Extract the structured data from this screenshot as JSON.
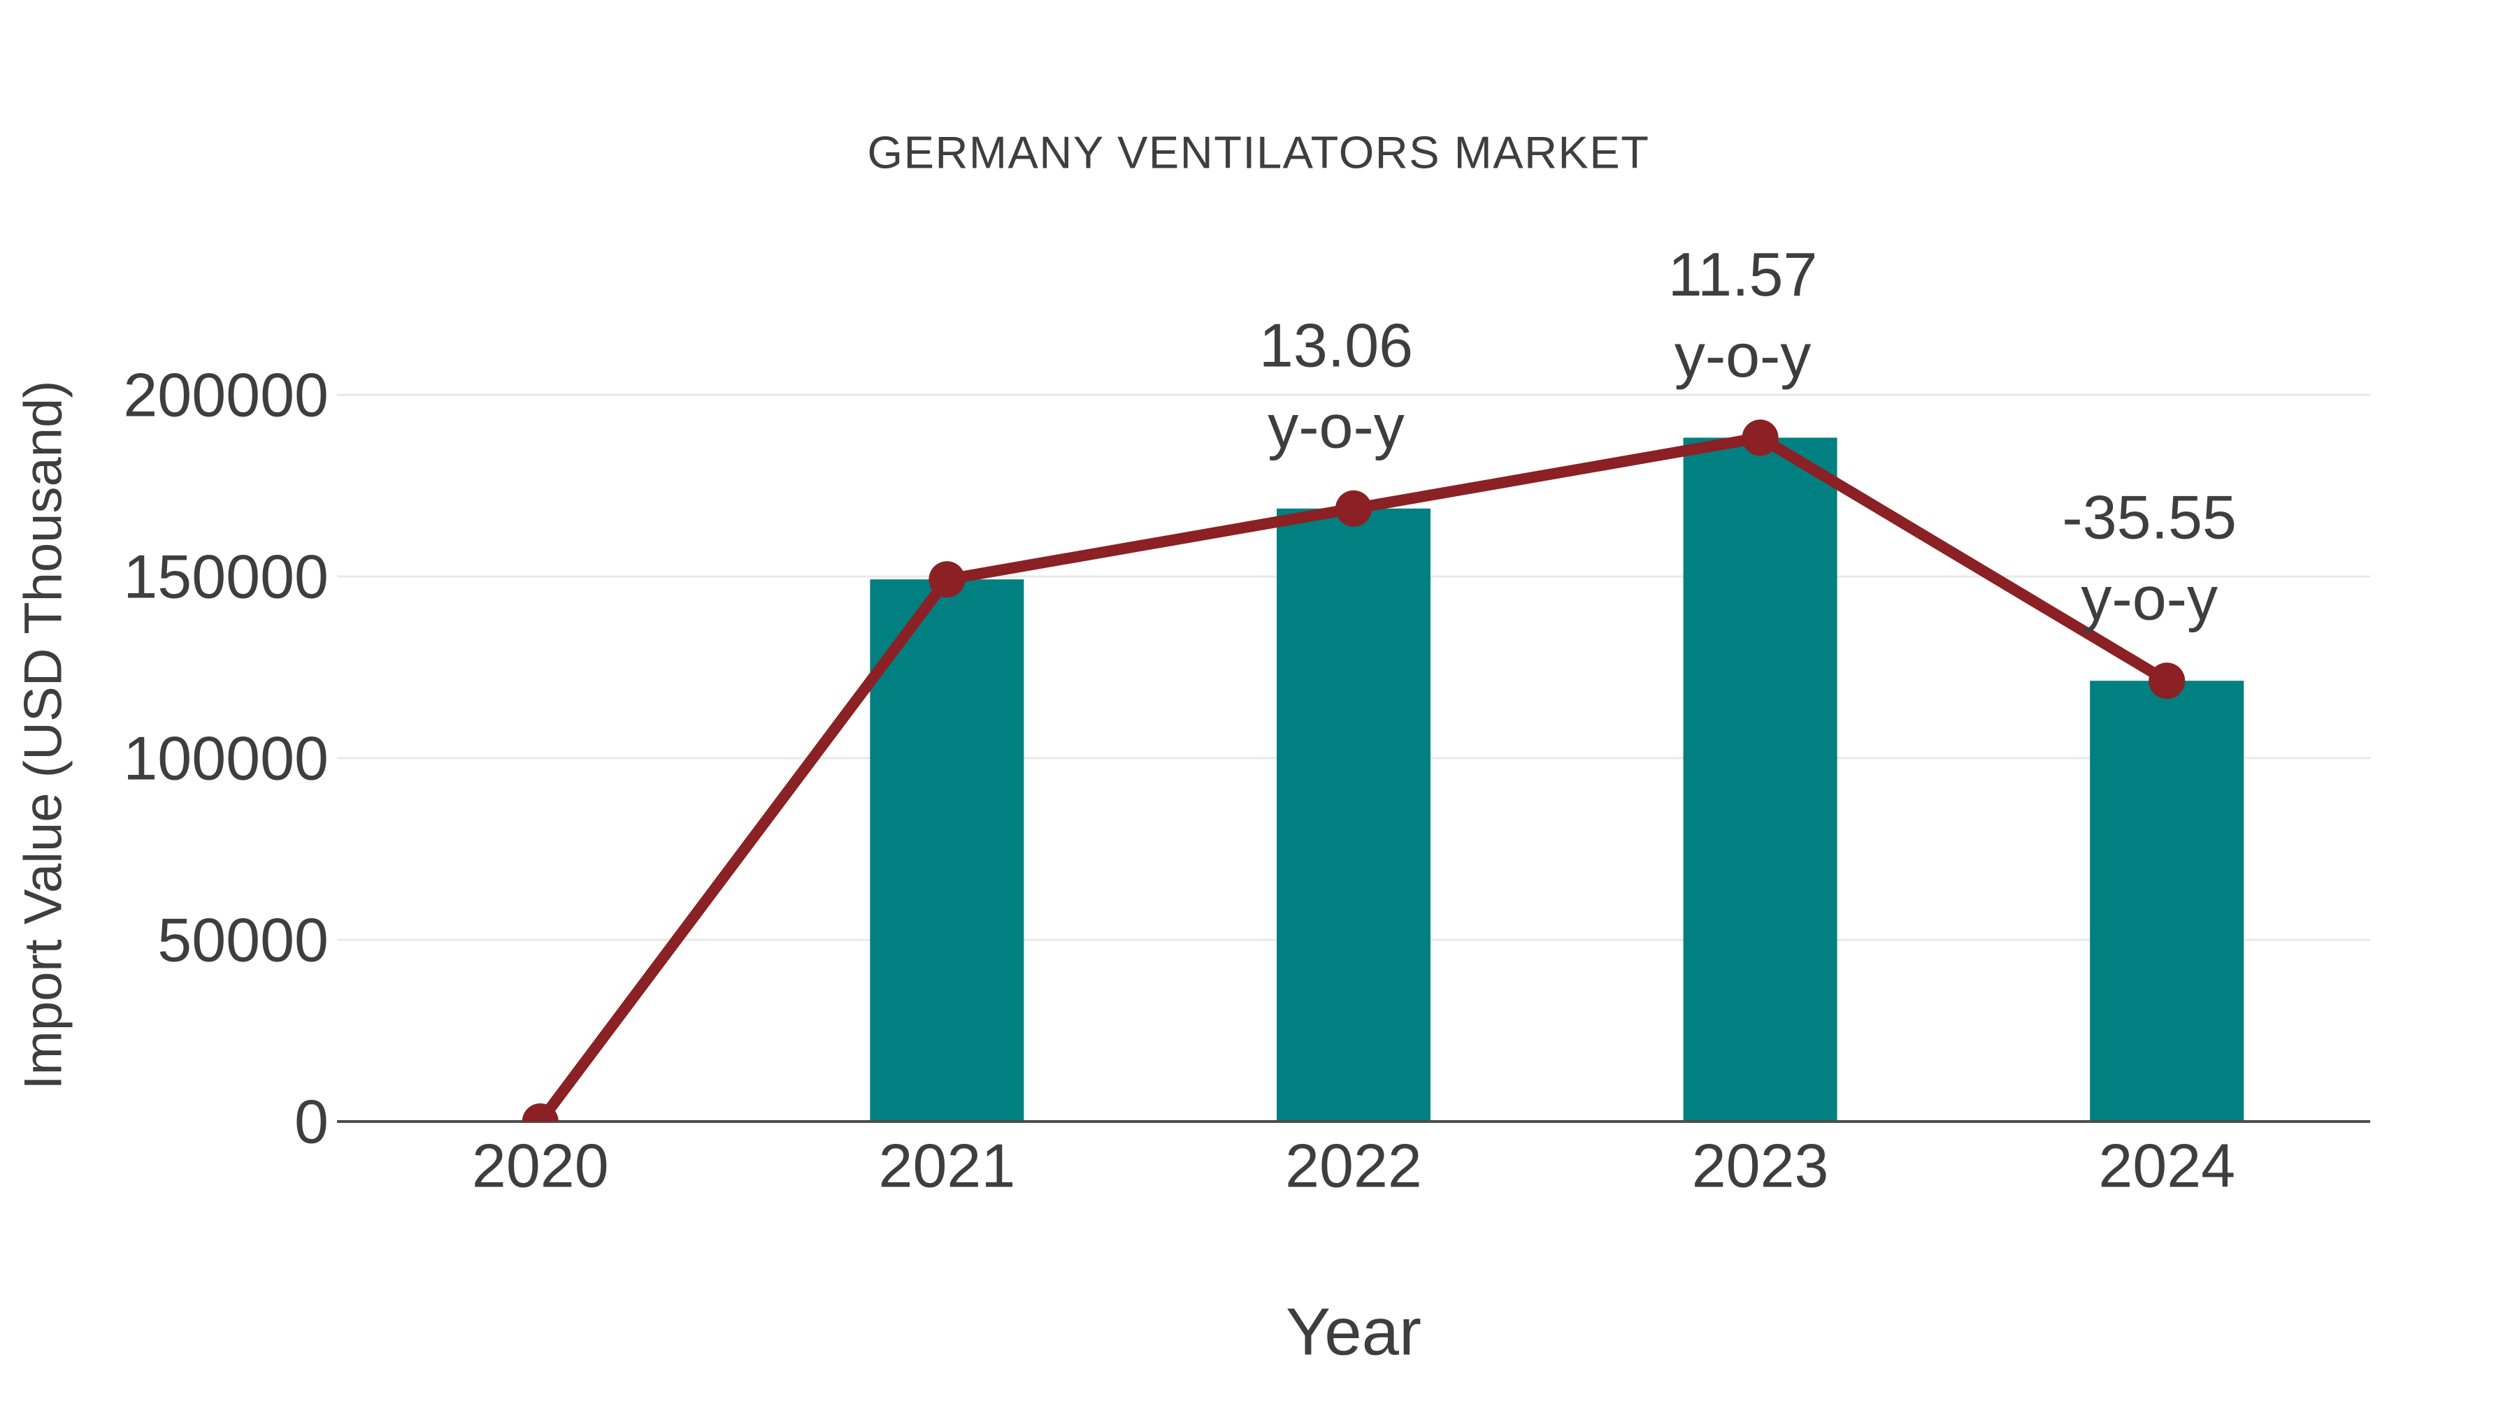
{
  "title": "GERMANY VENTILATORS MARKET",
  "chart_data": {
    "type": "bar",
    "subtype": "bar-with-line-overlay",
    "title": "GERMANY VENTILATORS MARKET",
    "xlabel": "Year",
    "ylabel": "Import Value (USD Thousand)",
    "categories": [
      "2020",
      "2021",
      "2022",
      "2023",
      "2024"
    ],
    "series": [
      {
        "name": "Import Value (USD Thousand)",
        "type": "bar",
        "color": "#008080",
        "values": [
          0,
          149200,
          168700,
          188200,
          121300
        ]
      },
      {
        "name": "y-o-y trend line",
        "type": "line",
        "color": "#8B2025",
        "marker": "circle",
        "values": [
          0,
          149200,
          168700,
          188200,
          121300
        ]
      }
    ],
    "annotations": [
      {
        "category": "2022",
        "value_pct": 13.06,
        "lines": [
          "13.06",
          "y-o-y"
        ]
      },
      {
        "category": "2023",
        "value_pct": 11.57,
        "lines": [
          "11.57",
          "y-o-y"
        ]
      },
      {
        "category": "2024",
        "value_pct": -35.55,
        "lines": [
          "-35.55",
          "y-o-y"
        ]
      }
    ],
    "ylim": [
      0,
      200000
    ],
    "yticks": [
      0,
      50000,
      100000,
      150000,
      200000
    ],
    "grid": "horizontal",
    "legend": "none",
    "background": "#ffffff"
  },
  "colors": {
    "bar": "#008080",
    "line": "#8B2025",
    "marker": "#8B2025",
    "grid": "#E8E8E8",
    "axis": "#4D4D4D",
    "text": "#3E3E3E"
  }
}
